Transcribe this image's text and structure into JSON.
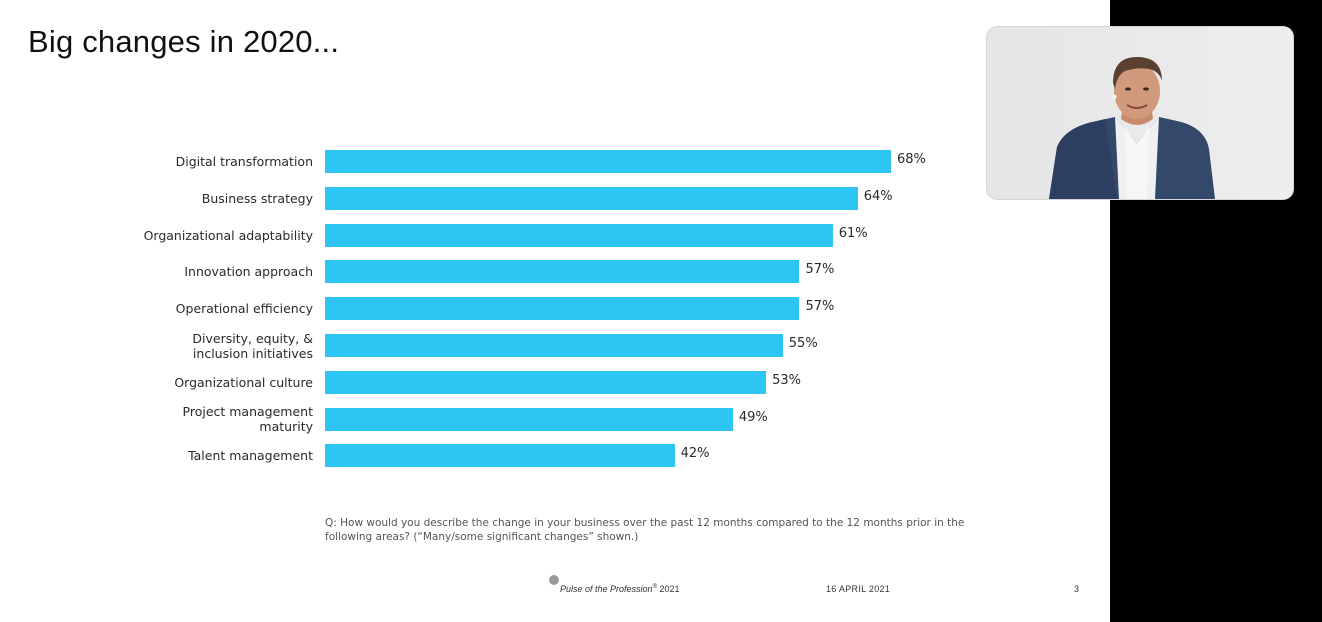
{
  "slide": {
    "title": "Big changes in 2020...",
    "question": "Q: How would you describe the change in your business over the past 12 months compared to the 12 months prior in the following areas? (“Many/some significant changes” shown.)",
    "footer": {
      "brand_italic": "Pulse of the Profession",
      "brand_mark": "®",
      "brand_year": " 2021",
      "date": "16 APRIL 2021",
      "page": "3"
    }
  },
  "chart_data": {
    "type": "bar",
    "orientation": "horizontal",
    "categories": [
      "Digital transformation",
      "Business strategy",
      "Organizational adaptability",
      "Innovation approach",
      "Operational efficiency",
      "Diversity, equity, & inclusion initiatives",
      "Organizational culture",
      "Project management maturity",
      "Talent management"
    ],
    "category_lines": [
      [
        "Digital transformation"
      ],
      [
        "Business strategy"
      ],
      [
        "Organizational adaptability"
      ],
      [
        "Innovation approach"
      ],
      [
        "Operational efficiency"
      ],
      [
        "Diversity, equity, &",
        "inclusion initiatives"
      ],
      [
        "Organizational culture"
      ],
      [
        "Project management",
        "maturity"
      ],
      [
        "Talent management"
      ]
    ],
    "values": [
      68,
      64,
      61,
      57,
      57,
      55,
      53,
      49,
      42
    ],
    "value_labels": [
      "68%",
      "64%",
      "61%",
      "57%",
      "57%",
      "55%",
      "53%",
      "49%",
      "42%"
    ],
    "bar_color": "#2ec5f3",
    "xlim": [
      0,
      68
    ]
  },
  "webcam": {
    "description_icon": "presenter-video-feed"
  }
}
